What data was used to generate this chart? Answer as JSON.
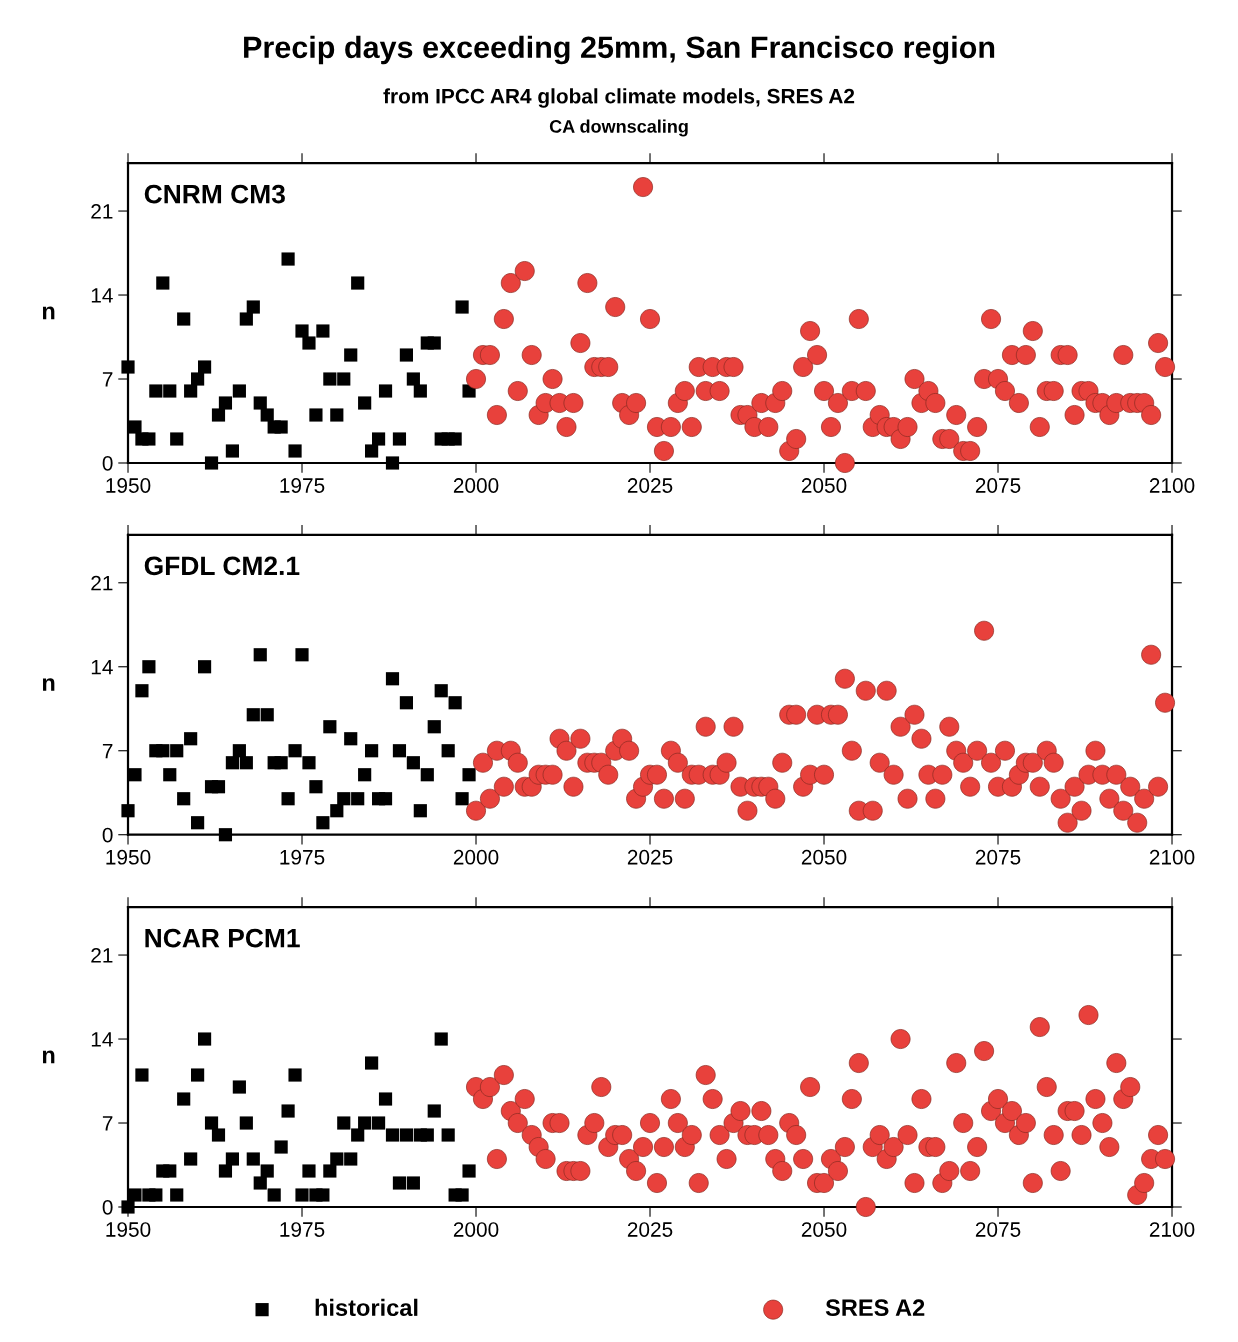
{
  "chart_data": [
    {
      "type": "scatter",
      "title": "Precip days exceeding 25mm, San Francisco region",
      "subtitle": "from IPCC AR4 global climate models, SRES A2",
      "annotations": [
        "CA downscaling",
        "CNRM CM3"
      ],
      "ylabel": "n",
      "xlim": [
        1950,
        2100
      ],
      "xticks": [
        1950,
        1975,
        2000,
        2025,
        2050,
        2075,
        2100
      ],
      "ylim": [
        0,
        25
      ],
      "yticks": [
        0,
        7,
        14,
        21
      ],
      "grid": false,
      "series": [
        {
          "color": "#000000",
          "marker": "square",
          "x": [
            1950,
            1951,
            1952,
            1953,
            1954,
            1955,
            1956,
            1957,
            1958,
            1959,
            1960,
            1961,
            1962,
            1963,
            1964,
            1965,
            1966,
            1967,
            1968,
            1969,
            1970,
            1971,
            1972,
            1973,
            1974,
            1975,
            1976,
            1977,
            1978,
            1979,
            1980,
            1981,
            1982,
            1983,
            1984,
            1985,
            1986,
            1987,
            1988,
            1989,
            1990,
            1991,
            1992,
            1993,
            1994,
            1995,
            1996,
            1997,
            1998,
            1999
          ],
          "values": [
            8,
            3,
            2,
            2,
            6,
            15,
            6,
            2,
            12,
            6,
            7,
            8,
            0,
            4,
            5,
            1,
            6,
            12,
            13,
            5,
            4,
            3,
            3,
            17,
            1,
            11,
            10,
            4,
            11,
            7,
            4,
            7,
            9,
            15,
            5,
            1,
            2,
            6,
            0,
            2,
            9,
            7,
            6,
            10,
            10,
            2,
            2,
            2,
            13,
            6
          ]
        },
        {
          "color": "#e8413c",
          "marker": "circle",
          "x": [
            2000,
            2001,
            2002,
            2003,
            2004,
            2005,
            2006,
            2007,
            2008,
            2009,
            2010,
            2011,
            2012,
            2013,
            2014,
            2015,
            2016,
            2017,
            2018,
            2019,
            2020,
            2021,
            2022,
            2023,
            2024,
            2025,
            2026,
            2027,
            2028,
            2029,
            2030,
            2031,
            2032,
            2033,
            2034,
            2035,
            2036,
            2037,
            2038,
            2039,
            2040,
            2041,
            2042,
            2043,
            2044,
            2045,
            2046,
            2047,
            2048,
            2049,
            2050,
            2051,
            2052,
            2053,
            2054,
            2055,
            2056,
            2057,
            2058,
            2059,
            2060,
            2061,
            2062,
            2063,
            2064,
            2065,
            2066,
            2067,
            2068,
            2069,
            2070,
            2071,
            2072,
            2073,
            2074,
            2075,
            2076,
            2077,
            2078,
            2079,
            2080,
            2081,
            2082,
            2083,
            2084,
            2085,
            2086,
            2087,
            2088,
            2089,
            2090,
            2091,
            2092,
            2093,
            2094,
            2095,
            2096,
            2097,
            2098,
            2099
          ],
          "values": [
            7,
            9,
            9,
            4,
            12,
            15,
            6,
            16,
            9,
            4,
            5,
            7,
            5,
            3,
            5,
            10,
            15,
            8,
            8,
            8,
            13,
            5,
            4,
            5,
            23,
            12,
            3,
            1,
            3,
            5,
            6,
            3,
            8,
            6,
            8,
            6,
            8,
            8,
            4,
            4,
            3,
            5,
            3,
            5,
            6,
            1,
            2,
            8,
            11,
            9,
            6,
            3,
            5,
            0,
            6,
            12,
            6,
            3,
            4,
            3,
            3,
            2,
            3,
            7,
            5,
            6,
            5,
            2,
            2,
            4,
            1,
            1,
            3,
            7,
            12,
            7,
            6,
            9,
            5,
            9,
            11,
            3,
            6,
            6,
            9,
            9,
            4,
            6,
            6,
            5,
            5,
            4,
            5,
            9,
            5,
            5,
            5,
            4,
            10,
            8
          ]
        }
      ]
    },
    {
      "type": "scatter",
      "annotations": [
        "GFDL CM2.1"
      ],
      "ylabel": "n",
      "xlim": [
        1950,
        2100
      ],
      "xticks": [
        1950,
        1975,
        2000,
        2025,
        2050,
        2075,
        2100
      ],
      "ylim": [
        0,
        25
      ],
      "yticks": [
        0,
        7,
        14,
        21
      ],
      "grid": false,
      "series": [
        {
          "color": "#000000",
          "marker": "square",
          "x": [
            1950,
            1951,
            1952,
            1953,
            1954,
            1955,
            1956,
            1957,
            1958,
            1959,
            1960,
            1961,
            1962,
            1963,
            1964,
            1965,
            1966,
            1967,
            1968,
            1969,
            1970,
            1971,
            1972,
            1973,
            1974,
            1975,
            1976,
            1977,
            1978,
            1979,
            1980,
            1981,
            1982,
            1983,
            1984,
            1985,
            1986,
            1987,
            1988,
            1989,
            1990,
            1991,
            1992,
            1993,
            1994,
            1995,
            1996,
            1997,
            1998,
            1999
          ],
          "values": [
            2,
            5,
            12,
            14,
            7,
            7,
            5,
            7,
            3,
            8,
            1,
            14,
            4,
            4,
            0,
            6,
            7,
            6,
            10,
            15,
            10,
            6,
            6,
            3,
            7,
            15,
            6,
            4,
            1,
            9,
            2,
            3,
            8,
            3,
            5,
            7,
            3,
            3,
            13,
            7,
            11,
            6,
            2,
            5,
            9,
            12,
            7,
            11,
            3,
            5
          ]
        },
        {
          "color": "#e8413c",
          "marker": "circle",
          "x": [
            2000,
            2001,
            2002,
            2003,
            2004,
            2005,
            2006,
            2007,
            2008,
            2009,
            2010,
            2011,
            2012,
            2013,
            2014,
            2015,
            2016,
            2017,
            2018,
            2019,
            2020,
            2021,
            2022,
            2023,
            2024,
            2025,
            2026,
            2027,
            2028,
            2029,
            2030,
            2031,
            2032,
            2033,
            2034,
            2035,
            2036,
            2037,
            2038,
            2039,
            2040,
            2041,
            2042,
            2043,
            2044,
            2045,
            2046,
            2047,
            2048,
            2049,
            2050,
            2051,
            2052,
            2053,
            2054,
            2055,
            2056,
            2057,
            2058,
            2059,
            2060,
            2061,
            2062,
            2063,
            2064,
            2065,
            2066,
            2067,
            2068,
            2069,
            2070,
            2071,
            2072,
            2073,
            2074,
            2075,
            2076,
            2077,
            2078,
            2079,
            2080,
            2081,
            2082,
            2083,
            2084,
            2085,
            2086,
            2087,
            2088,
            2089,
            2090,
            2091,
            2092,
            2093,
            2094,
            2095,
            2096,
            2097,
            2098,
            2099
          ],
          "values": [
            2,
            6,
            3,
            7,
            4,
            7,
            6,
            4,
            4,
            5,
            5,
            5,
            8,
            7,
            4,
            8,
            6,
            6,
            6,
            5,
            7,
            8,
            7,
            3,
            4,
            5,
            5,
            3,
            7,
            6,
            3,
            5,
            5,
            9,
            5,
            5,
            6,
            9,
            4,
            2,
            4,
            4,
            4,
            3,
            6,
            10,
            10,
            4,
            5,
            10,
            5,
            10,
            10,
            13,
            7,
            2,
            12,
            2,
            6,
            12,
            5,
            9,
            3,
            10,
            8,
            5,
            3,
            5,
            9,
            7,
            6,
            4,
            7,
            17,
            6,
            4,
            7,
            4,
            5,
            6,
            6,
            4,
            7,
            6,
            3,
            1,
            4,
            2,
            5,
            7,
            5,
            3,
            5,
            2,
            4,
            1,
            3,
            15,
            4,
            11
          ]
        }
      ]
    },
    {
      "type": "scatter",
      "annotations": [
        "NCAR PCM1"
      ],
      "ylabel": "n",
      "xlim": [
        1950,
        2100
      ],
      "xticks": [
        1950,
        1975,
        2000,
        2025,
        2050,
        2075,
        2100
      ],
      "ylim": [
        0,
        25
      ],
      "yticks": [
        0,
        7,
        14,
        21
      ],
      "grid": false,
      "legend": "bottom",
      "series": [
        {
          "name": "historical",
          "color": "#000000",
          "marker": "square",
          "x": [
            1950,
            1951,
            1952,
            1953,
            1954,
            1955,
            1956,
            1957,
            1958,
            1959,
            1960,
            1961,
            1962,
            1963,
            1964,
            1965,
            1966,
            1967,
            1968,
            1969,
            1970,
            1971,
            1972,
            1973,
            1974,
            1975,
            1976,
            1977,
            1978,
            1979,
            1980,
            1981,
            1982,
            1983,
            1984,
            1985,
            1986,
            1987,
            1988,
            1989,
            1990,
            1991,
            1992,
            1993,
            1994,
            1995,
            1996,
            1997,
            1998,
            1999
          ],
          "values": [
            0,
            1,
            11,
            1,
            1,
            3,
            3,
            1,
            9,
            4,
            11,
            14,
            7,
            6,
            3,
            4,
            10,
            7,
            4,
            2,
            3,
            1,
            5,
            8,
            11,
            1,
            3,
            1,
            1,
            3,
            4,
            7,
            4,
            6,
            7,
            12,
            7,
            9,
            6,
            2,
            6,
            2,
            6,
            6,
            8,
            14,
            6,
            1,
            1,
            3
          ]
        },
        {
          "name": "SRES A2",
          "color": "#e8413c",
          "marker": "circle",
          "x": [
            2000,
            2001,
            2002,
            2003,
            2004,
            2005,
            2006,
            2007,
            2008,
            2009,
            2010,
            2011,
            2012,
            2013,
            2014,
            2015,
            2016,
            2017,
            2018,
            2019,
            2020,
            2021,
            2022,
            2023,
            2024,
            2025,
            2026,
            2027,
            2028,
            2029,
            2030,
            2031,
            2032,
            2033,
            2034,
            2035,
            2036,
            2037,
            2038,
            2039,
            2040,
            2041,
            2042,
            2043,
            2044,
            2045,
            2046,
            2047,
            2048,
            2049,
            2050,
            2051,
            2052,
            2053,
            2054,
            2055,
            2056,
            2057,
            2058,
            2059,
            2060,
            2061,
            2062,
            2063,
            2064,
            2065,
            2066,
            2067,
            2068,
            2069,
            2070,
            2071,
            2072,
            2073,
            2074,
            2075,
            2076,
            2077,
            2078,
            2079,
            2080,
            2081,
            2082,
            2083,
            2084,
            2085,
            2086,
            2087,
            2088,
            2089,
            2090,
            2091,
            2092,
            2093,
            2094,
            2095,
            2096,
            2097,
            2098,
            2099
          ],
          "values": [
            10,
            9,
            10,
            4,
            11,
            8,
            7,
            9,
            6,
            5,
            4,
            7,
            7,
            3,
            3,
            3,
            6,
            7,
            10,
            5,
            6,
            6,
            4,
            3,
            5,
            7,
            2,
            5,
            9,
            7,
            5,
            6,
            2,
            11,
            9,
            6,
            4,
            7,
            8,
            6,
            6,
            8,
            6,
            4,
            3,
            7,
            6,
            4,
            10,
            2,
            2,
            4,
            3,
            5,
            9,
            12,
            0,
            5,
            6,
            4,
            5,
            14,
            6,
            2,
            9,
            5,
            5,
            2,
            3,
            12,
            7,
            3,
            5,
            13,
            8,
            9,
            7,
            8,
            6,
            7,
            2,
            15,
            10,
            6,
            3,
            8,
            8,
            6,
            16,
            9,
            7,
            5,
            12,
            9,
            10,
            1,
            2,
            4,
            6,
            4
          ]
        }
      ]
    }
  ]
}
